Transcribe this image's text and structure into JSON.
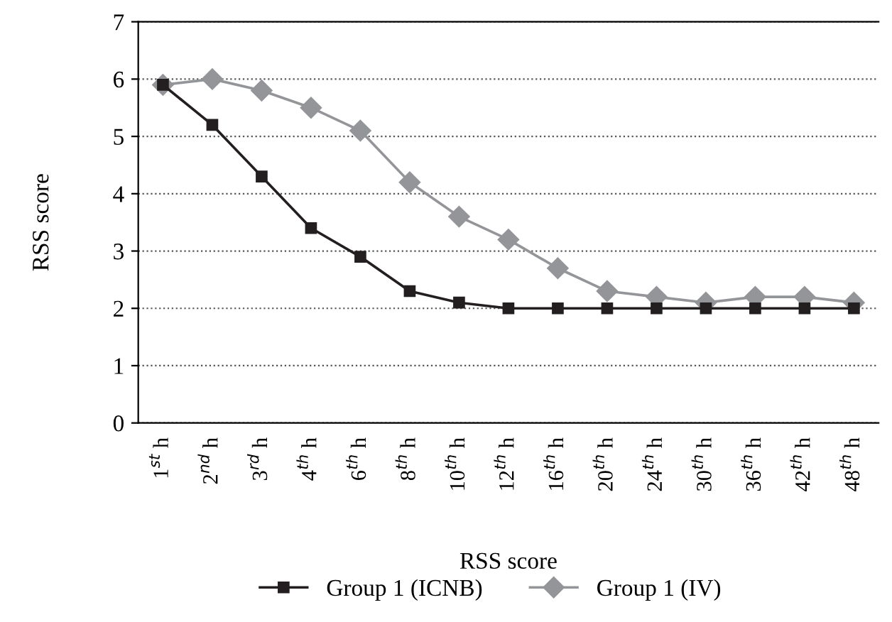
{
  "chart_data": {
    "type": "line",
    "categories": [
      "1$^{st}$ h",
      "2$^{nd}$ h",
      "3$^{rd}$ h",
      "4$^{th}$ h",
      "6$^{th}$ h",
      "8$^{th}$ h",
      "10$^{th}$ h",
      "12$^{th}$ h",
      "16$^{th}$ h",
      "20$^{th}$ h",
      "24$^{th}$ h",
      "30$^{th}$ h",
      "36$^{th}$ h",
      "42$^{th}$ h",
      "48$^{th}$ h"
    ],
    "series": [
      {
        "name": "Group 1 (ICNB)",
        "color": "#231f20",
        "marker": "square",
        "values": [
          5.9,
          5.2,
          4.3,
          3.4,
          2.9,
          2.3,
          2.1,
          2.0,
          2.0,
          2.0,
          2.0,
          2.0,
          2.0,
          2.0,
          2.0
        ]
      },
      {
        "name": "Group 1 (IV)",
        "color": "#939598",
        "marker": "diamond",
        "values": [
          5.9,
          6.0,
          5.8,
          5.5,
          5.1,
          4.2,
          3.6,
          3.2,
          2.7,
          2.3,
          2.2,
          2.1,
          2.2,
          2.2,
          2.1
        ]
      }
    ],
    "xlabel": "RSS score",
    "ylabel": "RSS score",
    "ylim": [
      0,
      7
    ],
    "yticks": [
      0,
      1,
      2,
      3,
      4,
      5,
      6,
      7
    ],
    "grid": "y",
    "legend": "bottom",
    "line_style": "solid"
  }
}
